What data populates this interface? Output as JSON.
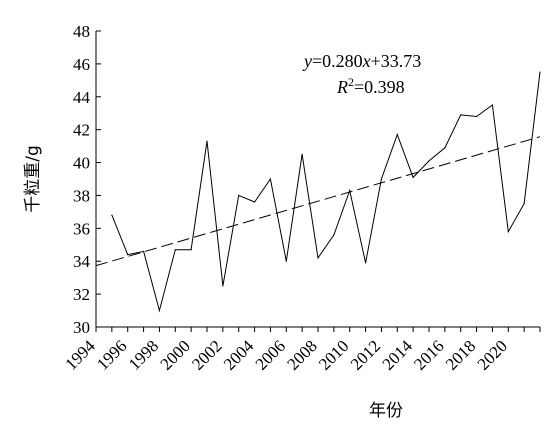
{
  "chart_data": {
    "type": "line",
    "title": "",
    "xlabel": "年份",
    "ylabel": "千粒重/g",
    "x_tick_labels": [
      "1994",
      "1996",
      "1998",
      "2000",
      "2002",
      "2004",
      "2006",
      "2008",
      "2010",
      "2012",
      "2014",
      "2016",
      "2018",
      "2020"
    ],
    "y_tick_labels": [
      "30",
      "32",
      "34",
      "36",
      "38",
      "40",
      "42",
      "44",
      "46",
      "48"
    ],
    "ylim": [
      30,
      48
    ],
    "xlim": [
      1994,
      2022
    ],
    "grid": false,
    "series": [
      {
        "x": [
          1995,
          1996,
          1997,
          1998,
          1999,
          2000,
          2001,
          2002,
          2003,
          2004,
          2005,
          2006,
          2007,
          2008,
          2009,
          2010,
          2011,
          2012,
          2013,
          2014,
          2015,
          2016,
          2017,
          2018,
          2019,
          2020,
          2021,
          2022
        ],
        "y": [
          36.8,
          34.4,
          34.6,
          31.0,
          34.7,
          34.7,
          41.3,
          32.5,
          38.0,
          37.6,
          39.0,
          34.0,
          40.5,
          34.2,
          35.6,
          38.3,
          33.9,
          39.0,
          41.7,
          39.1,
          40.1,
          40.9,
          42.9,
          42.8,
          43.5,
          35.8,
          37.5,
          45.5
        ],
        "color": "#000000",
        "style": "solid"
      }
    ],
    "trendline": {
      "slope": 0.28,
      "intercept": 33.73,
      "x_start": 1994,
      "x_end": 2022,
      "style": "dashed"
    },
    "annotations": {
      "equation": {
        "y": "y",
        "eq_mid": "=0.280",
        "x": "x",
        "eq_end": "+33.73"
      },
      "r2": {
        "r": "R",
        "sup": "2",
        "value": "=0.398"
      }
    }
  }
}
